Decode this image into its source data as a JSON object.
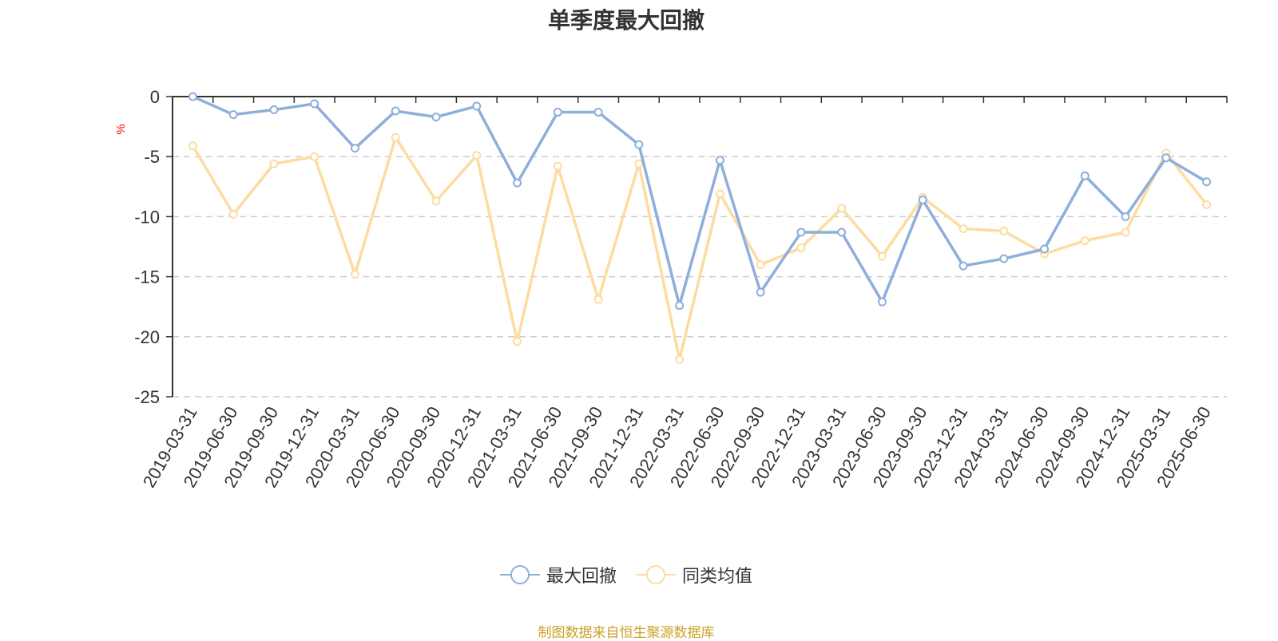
{
  "chart_data": {
    "type": "line",
    "title": "单季度最大回撤",
    "ylabel": "%",
    "ylim": [
      -25,
      0
    ],
    "yticks": [
      0,
      -5,
      -10,
      -15,
      -20,
      -25
    ],
    "grid": true,
    "legend_position": "bottom",
    "categories": [
      "2019-03-31",
      "2019-06-30",
      "2019-09-30",
      "2019-12-31",
      "2020-03-31",
      "2020-06-30",
      "2020-09-30",
      "2020-12-31",
      "2021-03-31",
      "2021-06-30",
      "2021-09-30",
      "2021-12-31",
      "2022-03-31",
      "2022-06-30",
      "2022-09-30",
      "2022-12-31",
      "2023-03-31",
      "2023-06-30",
      "2023-09-30",
      "2023-12-31",
      "2024-03-31",
      "2024-06-30",
      "2024-09-30",
      "2024-12-31",
      "2025-03-31",
      "2025-06-30"
    ],
    "series": [
      {
        "name": "最大回撤",
        "color": "#8eaedc",
        "values": [
          0.0,
          -1.5,
          -1.1,
          -0.6,
          -4.3,
          -1.2,
          -1.7,
          -0.8,
          -7.2,
          -1.3,
          -1.3,
          -4.0,
          -17.4,
          -5.3,
          -16.3,
          -11.3,
          -11.3,
          -17.1,
          -8.6,
          -14.1,
          -13.5,
          -12.7,
          -6.6,
          -10.0,
          -5.1,
          -7.1
        ]
      },
      {
        "name": "同类均值",
        "color": "#fcdca0",
        "values": [
          -4.1,
          -9.8,
          -5.6,
          -5.0,
          -14.8,
          -3.4,
          -8.7,
          -4.9,
          -20.4,
          -5.8,
          -16.9,
          -5.6,
          -21.9,
          -8.1,
          -14.0,
          -12.6,
          -9.3,
          -13.3,
          -8.4,
          -11.0,
          -11.2,
          -13.1,
          -12.0,
          -11.3,
          -4.7,
          -9.0
        ]
      }
    ]
  },
  "source_note": "制图数据来自恒生聚源数据库"
}
